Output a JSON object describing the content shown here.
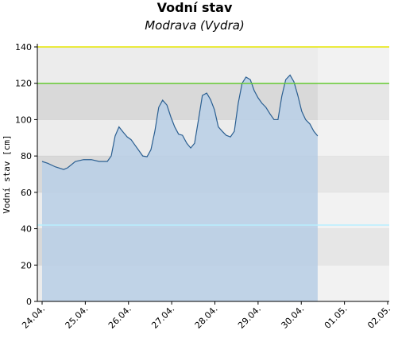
{
  "chart_data": {
    "type": "area",
    "title": "Vodní stav",
    "subtitle": "Modrava (Vydra)",
    "y_label": "Vodní stav [cm]",
    "x": [
      0,
      0.13,
      0.31,
      0.5,
      0.59,
      0.77,
      0.96,
      1.14,
      1.32,
      1.51,
      1.6,
      1.69,
      1.78,
      1.88,
      1.97,
      2.06,
      2.15,
      2.24,
      2.33,
      2.43,
      2.52,
      2.61,
      2.7,
      2.79,
      2.89,
      2.98,
      3.07,
      3.16,
      3.25,
      3.35,
      3.44,
      3.53,
      3.62,
      3.71,
      3.81,
      3.9,
      3.99,
      4.08,
      4.17,
      4.26,
      4.36,
      4.45,
      4.54,
      4.63,
      4.72,
      4.82,
      4.91,
      5,
      5.09,
      5.18,
      5.28,
      5.37,
      5.46,
      5.55,
      5.64,
      5.74,
      5.83,
      5.92,
      6.01,
      6.1,
      6.2,
      6.29,
      6.38
    ],
    "series": [
      {
        "color": "#2b5f91",
        "fill": "#b9cfe6",
        "values": [
          77,
          76,
          74,
          72.6,
          73.5,
          77,
          78,
          78,
          77,
          77,
          80,
          91,
          96,
          93,
          90.5,
          89,
          86,
          83,
          80,
          79.6,
          83.5,
          93.6,
          106.8,
          110.7,
          108,
          101.5,
          96,
          92,
          91.4,
          87,
          84.4,
          87,
          100,
          113.3,
          114.6,
          111,
          105.4,
          96,
          93.6,
          91.4,
          90.5,
          93.6,
          109,
          120,
          123.4,
          122,
          116,
          112,
          109,
          106.8,
          103,
          100,
          100,
          113,
          122,
          124.5,
          120.8,
          113.3,
          104.6,
          100,
          97.6,
          93.6,
          91
        ]
      }
    ],
    "xlim": [
      0,
      8
    ],
    "xticks": [
      {
        "value": 0,
        "label": "24.04."
      },
      {
        "value": 1,
        "label": "25.04."
      },
      {
        "value": 2,
        "label": "26.04."
      },
      {
        "value": 3,
        "label": "27.04."
      },
      {
        "value": 4,
        "label": "28.04."
      },
      {
        "value": 5,
        "label": "29.04."
      },
      {
        "value": 6,
        "label": "30.04."
      },
      {
        "value": 7,
        "label": "01.05."
      },
      {
        "value": 8,
        "label": "02.05."
      }
    ],
    "ylim": [
      0,
      140
    ],
    "yticks": [
      0,
      20,
      40,
      60,
      80,
      100,
      120,
      140
    ],
    "grid": "bands",
    "reference_lines": [
      {
        "value": 140,
        "color": "#e6e600"
      },
      {
        "value": 120,
        "color": "#66cc33"
      },
      {
        "value": 42,
        "color": "#b8f0ff"
      }
    ]
  }
}
